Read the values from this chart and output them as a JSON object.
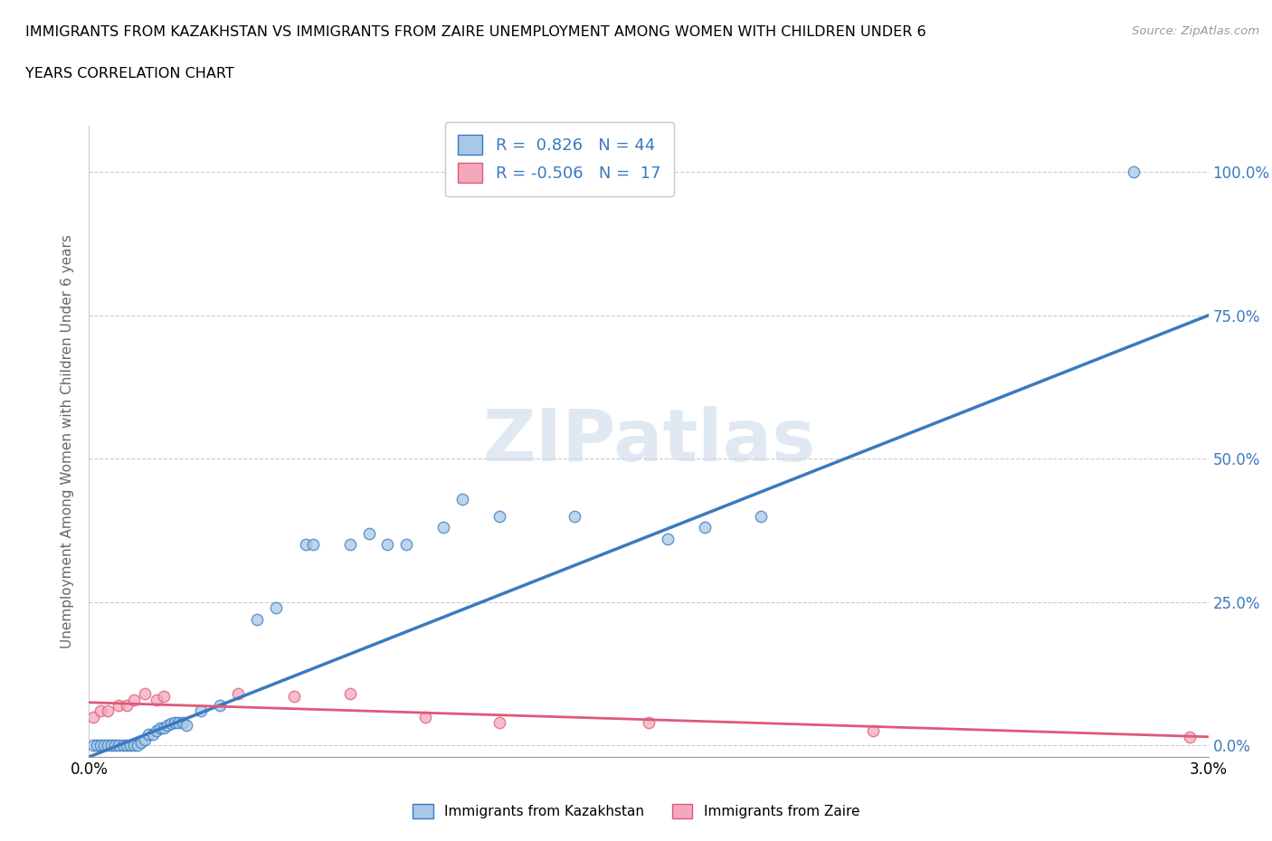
{
  "title_line1": "IMMIGRANTS FROM KAZAKHSTAN VS IMMIGRANTS FROM ZAIRE UNEMPLOYMENT AMONG WOMEN WITH CHILDREN UNDER 6",
  "title_line2": "YEARS CORRELATION CHART",
  "source": "Source: ZipAtlas.com",
  "ylabel": "Unemployment Among Women with Children Under 6 years",
  "xlim": [
    0.0,
    0.03
  ],
  "ylim": [
    -0.02,
    1.08
  ],
  "ytick_labels": [
    "0.0%",
    "25.0%",
    "50.0%",
    "75.0%",
    "100.0%"
  ],
  "ytick_values": [
    0.0,
    0.25,
    0.5,
    0.75,
    1.0
  ],
  "kaz_color": "#a8c8e8",
  "zai_color": "#f4a8bc",
  "kaz_line_color": "#3a7abf",
  "zai_line_color": "#e05878",
  "kaz_scatter": [
    [
      0.0001,
      0.0
    ],
    [
      0.0002,
      0.0
    ],
    [
      0.0003,
      0.0
    ],
    [
      0.0004,
      0.0
    ],
    [
      0.0005,
      0.0
    ],
    [
      0.0006,
      0.0
    ],
    [
      0.0007,
      0.0
    ],
    [
      0.0008,
      0.0
    ],
    [
      0.0009,
      0.0
    ],
    [
      0.001,
      0.0
    ],
    [
      0.0011,
      0.0
    ],
    [
      0.0012,
      0.0
    ],
    [
      0.0013,
      0.0
    ],
    [
      0.0014,
      0.005
    ],
    [
      0.0015,
      0.01
    ],
    [
      0.0016,
      0.02
    ],
    [
      0.0017,
      0.02
    ],
    [
      0.0018,
      0.025
    ],
    [
      0.0019,
      0.03
    ],
    [
      0.002,
      0.03
    ],
    [
      0.0021,
      0.035
    ],
    [
      0.0022,
      0.038
    ],
    [
      0.0023,
      0.04
    ],
    [
      0.0024,
      0.04
    ],
    [
      0.0025,
      0.04
    ],
    [
      0.0026,
      0.035
    ],
    [
      0.003,
      0.06
    ],
    [
      0.0035,
      0.07
    ],
    [
      0.0045,
      0.22
    ],
    [
      0.005,
      0.24
    ],
    [
      0.0058,
      0.35
    ],
    [
      0.006,
      0.35
    ],
    [
      0.007,
      0.35
    ],
    [
      0.0075,
      0.37
    ],
    [
      0.008,
      0.35
    ],
    [
      0.0085,
      0.35
    ],
    [
      0.0095,
      0.38
    ],
    [
      0.01,
      0.43
    ],
    [
      0.011,
      0.4
    ],
    [
      0.013,
      0.4
    ],
    [
      0.0155,
      0.36
    ],
    [
      0.0165,
      0.38
    ],
    [
      0.018,
      0.4
    ],
    [
      0.028,
      1.0
    ]
  ],
  "zai_scatter": [
    [
      0.0001,
      0.05
    ],
    [
      0.0003,
      0.06
    ],
    [
      0.0005,
      0.06
    ],
    [
      0.0008,
      0.07
    ],
    [
      0.001,
      0.07
    ],
    [
      0.0012,
      0.08
    ],
    [
      0.0015,
      0.09
    ],
    [
      0.0018,
      0.08
    ],
    [
      0.002,
      0.085
    ],
    [
      0.004,
      0.09
    ],
    [
      0.0055,
      0.085
    ],
    [
      0.007,
      0.09
    ],
    [
      0.009,
      0.05
    ],
    [
      0.011,
      0.04
    ],
    [
      0.015,
      0.04
    ],
    [
      0.021,
      0.025
    ],
    [
      0.0295,
      0.015
    ]
  ],
  "kaz_line_x": [
    0.0,
    0.03
  ],
  "kaz_line_y": [
    -0.02,
    0.75
  ],
  "zai_line_x": [
    0.0,
    0.03
  ],
  "zai_line_y": [
    0.075,
    0.015
  ]
}
